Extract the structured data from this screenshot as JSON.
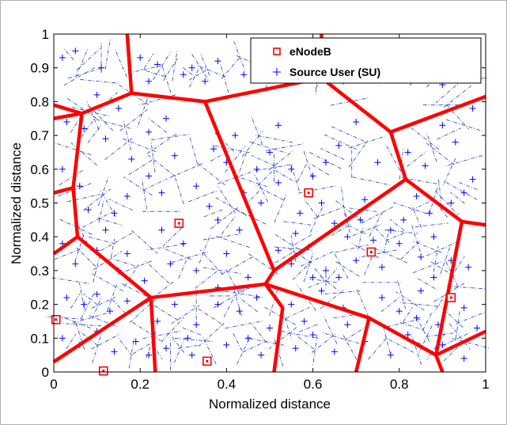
{
  "chart_data": {
    "type": "scatter",
    "title": "",
    "xlabel": "Normalized distance",
    "ylabel": "Normalized distance",
    "xlim": [
      0,
      1
    ],
    "ylim": [
      0,
      1
    ],
    "xticks": [
      "0",
      "0.2",
      "0.4",
      "0.6",
      "0.8",
      "1"
    ],
    "yticks": [
      "0",
      "0.1",
      "0.2",
      "0.3",
      "0.4",
      "0.5",
      "0.6",
      "0.7",
      "0.8",
      "0.9",
      "1"
    ],
    "grid": false,
    "legend": {
      "position": "top-right",
      "entries": [
        {
          "label": "eNodeB",
          "marker": "square",
          "color": "#ff0000"
        },
        {
          "label": "Source User (SU)",
          "marker": "plus",
          "color": "#0000ff"
        }
      ]
    },
    "enodeb": [
      {
        "x": 0.005,
        "y": 0.155
      },
      {
        "x": 0.115,
        "y": 0.003
      },
      {
        "x": 0.29,
        "y": 0.44
      },
      {
        "x": 0.355,
        "y": 0.032
      },
      {
        "x": 0.59,
        "y": 0.53
      },
      {
        "x": 0.735,
        "y": 0.355
      },
      {
        "x": 0.92,
        "y": 0.22
      }
    ],
    "cell_boundaries": [
      [
        [
          0.17,
          1.0
        ],
        [
          0.18,
          0.825
        ],
        [
          0.35,
          0.8
        ],
        [
          0.62,
          0.87
        ],
        [
          0.62,
          1.0
        ]
      ],
      [
        [
          0.0,
          0.75
        ],
        [
          0.065,
          0.765
        ],
        [
          0.18,
          0.825
        ]
      ],
      [
        [
          0.0,
          0.79
        ],
        [
          0.065,
          0.765
        ]
      ],
      [
        [
          0.065,
          0.765
        ],
        [
          0.045,
          0.545
        ],
        [
          0.0,
          0.53
        ]
      ],
      [
        [
          0.045,
          0.545
        ],
        [
          0.055,
          0.4
        ],
        [
          0.0,
          0.35
        ]
      ],
      [
        [
          0.055,
          0.4
        ],
        [
          0.225,
          0.22
        ],
        [
          0.49,
          0.26
        ],
        [
          0.51,
          0.3
        ],
        [
          0.815,
          0.57
        ],
        [
          0.78,
          0.71
        ],
        [
          0.62,
          0.87
        ]
      ],
      [
        [
          0.78,
          0.71
        ],
        [
          1.0,
          0.815
        ]
      ],
      [
        [
          0.35,
          0.8
        ],
        [
          0.51,
          0.3
        ]
      ],
      [
        [
          0.815,
          0.57
        ],
        [
          0.945,
          0.445
        ],
        [
          1.0,
          0.435
        ]
      ],
      [
        [
          0.945,
          0.445
        ],
        [
          0.885,
          0.05
        ]
      ],
      [
        [
          0.885,
          0.05
        ],
        [
          1.0,
          0.12
        ]
      ],
      [
        [
          0.49,
          0.26
        ],
        [
          0.73,
          0.16
        ],
        [
          0.885,
          0.05
        ],
        [
          0.9,
          0.0
        ]
      ],
      [
        [
          0.73,
          0.16
        ],
        [
          0.7,
          0.0
        ]
      ],
      [
        [
          0.49,
          0.26
        ],
        [
          0.53,
          0.19
        ],
        [
          0.51,
          0.0
        ]
      ],
      [
        [
          0.225,
          0.22
        ],
        [
          0.235,
          0.0
        ]
      ],
      [
        [
          0.225,
          0.22
        ],
        [
          0.0,
          0.03
        ]
      ]
    ],
    "source_users": [
      [
        0.02,
        0.93
      ],
      [
        0.05,
        0.95
      ],
      [
        0.11,
        0.9
      ],
      [
        0.1,
        0.82
      ],
      [
        0.2,
        0.93
      ],
      [
        0.22,
        0.86
      ],
      [
        0.24,
        0.91
      ],
      [
        0.3,
        0.88
      ],
      [
        0.32,
        0.9
      ],
      [
        0.35,
        0.86
      ],
      [
        0.38,
        0.92
      ],
      [
        0.44,
        0.88
      ],
      [
        0.48,
        0.95
      ],
      [
        0.52,
        0.91
      ],
      [
        0.55,
        0.87
      ],
      [
        0.58,
        0.9
      ],
      [
        0.67,
        0.86
      ],
      [
        0.73,
        0.93
      ],
      [
        0.8,
        0.92
      ],
      [
        0.86,
        0.88
      ],
      [
        0.9,
        0.85
      ],
      [
        0.95,
        0.95
      ],
      [
        0.97,
        0.78
      ],
      [
        0.03,
        0.74
      ],
      [
        0.07,
        0.72
      ],
      [
        0.12,
        0.69
      ],
      [
        0.15,
        0.78
      ],
      [
        0.22,
        0.71
      ],
      [
        0.26,
        0.75
      ],
      [
        0.37,
        0.66
      ],
      [
        0.4,
        0.62
      ],
      [
        0.42,
        0.7
      ],
      [
        0.47,
        0.6
      ],
      [
        0.5,
        0.65
      ],
      [
        0.52,
        0.73
      ],
      [
        0.55,
        0.6
      ],
      [
        0.6,
        0.58
      ],
      [
        0.63,
        0.62
      ],
      [
        0.66,
        0.67
      ],
      [
        0.7,
        0.74
      ],
      [
        0.75,
        0.62
      ],
      [
        0.82,
        0.65
      ],
      [
        0.86,
        0.61
      ],
      [
        0.9,
        0.73
      ],
      [
        0.93,
        0.68
      ],
      [
        0.97,
        0.57
      ],
      [
        0.02,
        0.6
      ],
      [
        0.06,
        0.55
      ],
      [
        0.08,
        0.48
      ],
      [
        0.14,
        0.47
      ],
      [
        0.17,
        0.52
      ],
      [
        0.22,
        0.58
      ],
      [
        0.25,
        0.53
      ],
      [
        0.33,
        0.55
      ],
      [
        0.36,
        0.49
      ],
      [
        0.38,
        0.45
      ],
      [
        0.44,
        0.53
      ],
      [
        0.48,
        0.5
      ],
      [
        0.52,
        0.56
      ],
      [
        0.57,
        0.47
      ],
      [
        0.62,
        0.5
      ],
      [
        0.65,
        0.44
      ],
      [
        0.68,
        0.4
      ],
      [
        0.71,
        0.45
      ],
      [
        0.74,
        0.39
      ],
      [
        0.78,
        0.42
      ],
      [
        0.81,
        0.45
      ],
      [
        0.84,
        0.52
      ],
      [
        0.87,
        0.47
      ],
      [
        0.92,
        0.5
      ],
      [
        0.95,
        0.53
      ],
      [
        0.02,
        0.38
      ],
      [
        0.05,
        0.32
      ],
      [
        0.1,
        0.36
      ],
      [
        0.15,
        0.3
      ],
      [
        0.17,
        0.35
      ],
      [
        0.21,
        0.27
      ],
      [
        0.27,
        0.32
      ],
      [
        0.3,
        0.38
      ],
      [
        0.33,
        0.3
      ],
      [
        0.4,
        0.35
      ],
      [
        0.45,
        0.28
      ],
      [
        0.52,
        0.36
      ],
      [
        0.55,
        0.32
      ],
      [
        0.59,
        0.37
      ],
      [
        0.63,
        0.3
      ],
      [
        0.66,
        0.28
      ],
      [
        0.7,
        0.33
      ],
      [
        0.76,
        0.31
      ],
      [
        0.8,
        0.38
      ],
      [
        0.85,
        0.34
      ],
      [
        0.88,
        0.28
      ],
      [
        0.92,
        0.33
      ],
      [
        0.96,
        0.31
      ],
      [
        0.03,
        0.22
      ],
      [
        0.07,
        0.2
      ],
      [
        0.1,
        0.23
      ],
      [
        0.13,
        0.18
      ],
      [
        0.17,
        0.21
      ],
      [
        0.24,
        0.15
      ],
      [
        0.28,
        0.2
      ],
      [
        0.33,
        0.14
      ],
      [
        0.38,
        0.2
      ],
      [
        0.43,
        0.18
      ],
      [
        0.47,
        0.22
      ],
      [
        0.55,
        0.2
      ],
      [
        0.58,
        0.15
      ],
      [
        0.62,
        0.24
      ],
      [
        0.67,
        0.19
      ],
      [
        0.76,
        0.22
      ],
      [
        0.8,
        0.18
      ],
      [
        0.84,
        0.16
      ],
      [
        0.89,
        0.14
      ],
      [
        0.95,
        0.19
      ],
      [
        0.98,
        0.13
      ],
      [
        0.02,
        0.1
      ],
      [
        0.06,
        0.08
      ],
      [
        0.1,
        0.12
      ],
      [
        0.14,
        0.06
      ],
      [
        0.19,
        0.09
      ],
      [
        0.26,
        0.07
      ],
      [
        0.31,
        0.1
      ],
      [
        0.32,
        0.05
      ],
      [
        0.4,
        0.08
      ],
      [
        0.45,
        0.1
      ],
      [
        0.48,
        0.05
      ],
      [
        0.56,
        0.07
      ],
      [
        0.6,
        0.11
      ],
      [
        0.65,
        0.06
      ],
      [
        0.72,
        0.09
      ],
      [
        0.78,
        0.05
      ],
      [
        0.82,
        0.11
      ],
      [
        0.9,
        0.08
      ],
      [
        0.95,
        0.04
      ],
      [
        0.18,
        0.63
      ],
      [
        0.28,
        0.64
      ],
      [
        0.12,
        0.42
      ],
      [
        0.43,
        0.42
      ],
      [
        0.56,
        0.41
      ],
      [
        0.72,
        0.51
      ],
      [
        0.88,
        0.4
      ],
      [
        0.25,
        0.42
      ],
      [
        0.38,
        0.25
      ],
      [
        0.6,
        0.28
      ],
      [
        0.85,
        0.24
      ],
      [
        0.5,
        0.13
      ],
      [
        0.68,
        0.14
      ],
      [
        0.22,
        0.05
      ]
    ]
  }
}
